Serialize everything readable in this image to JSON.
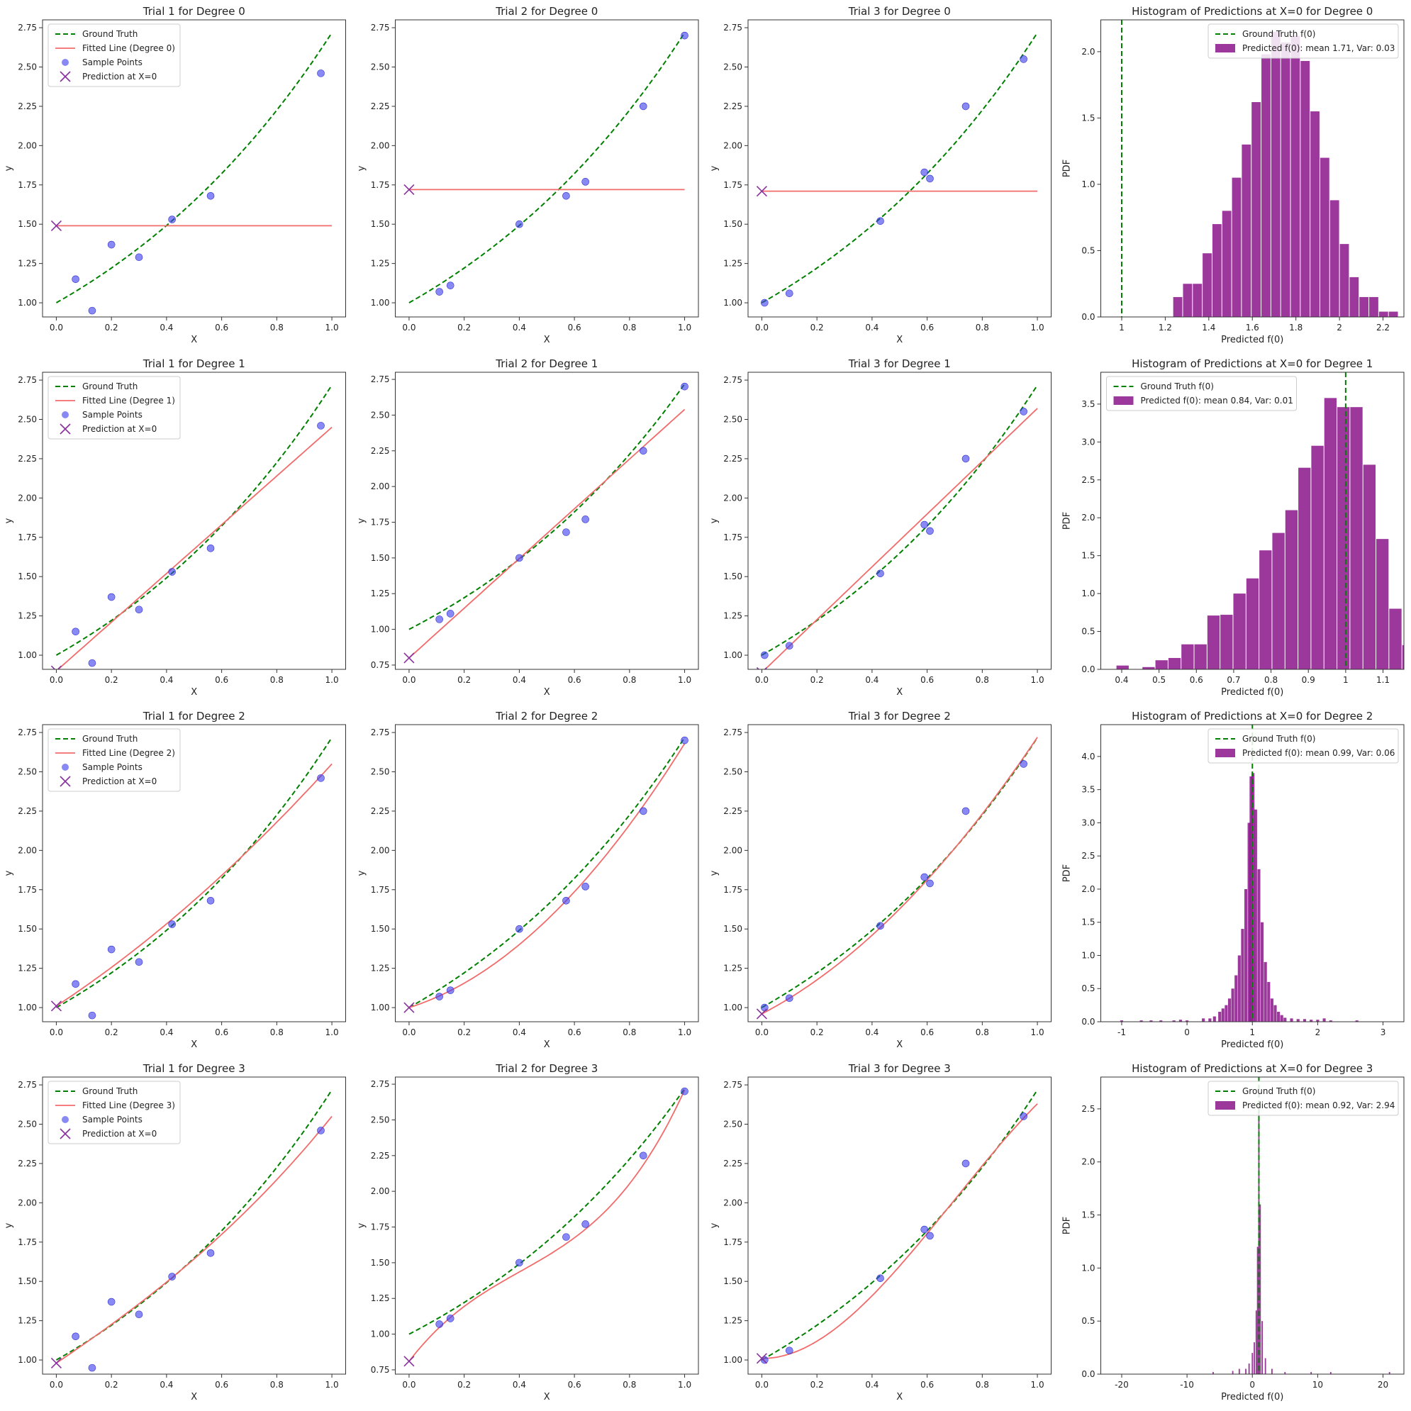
{
  "chart_data": [
    {
      "type": "line",
      "title": "Trial 1 for Degree 0",
      "xlabel": "X",
      "ylabel": "y",
      "xlim": [
        0,
        1
      ],
      "ylim": [
        1.0,
        2.75
      ],
      "legend": [
        "Ground Truth",
        "Fitted Line (Degree 0)",
        "Sample Points",
        "Prediction at X=0"
      ],
      "degree": 0,
      "fit_value": 1.49,
      "prediction": 1.49,
      "samples": [
        [
          0.07,
          1.15
        ],
        [
          0.13,
          0.95
        ],
        [
          0.2,
          1.37
        ],
        [
          0.3,
          1.29
        ],
        [
          0.42,
          1.53
        ],
        [
          0.56,
          1.68
        ],
        [
          0.96,
          2.46
        ]
      ]
    },
    {
      "type": "line",
      "title": "Trial 2 for Degree 0",
      "xlabel": "X",
      "ylabel": "y",
      "xlim": [
        0,
        1
      ],
      "ylim": [
        1.0,
        2.75
      ],
      "legend": [],
      "degree": 0,
      "fit_value": 1.72,
      "prediction": 1.72,
      "samples": [
        [
          0.11,
          1.07
        ],
        [
          0.15,
          1.11
        ],
        [
          0.4,
          1.5
        ],
        [
          0.57,
          1.68
        ],
        [
          0.64,
          1.77
        ],
        [
          0.85,
          2.25
        ],
        [
          1.0,
          2.7
        ]
      ]
    },
    {
      "type": "line",
      "title": "Trial 3 for Degree 0",
      "xlabel": "X",
      "ylabel": "y",
      "xlim": [
        0,
        1
      ],
      "ylim": [
        1.0,
        2.75
      ],
      "legend": [],
      "degree": 0,
      "fit_value": 1.71,
      "prediction": 1.71,
      "samples": [
        [
          0.01,
          1.0
        ],
        [
          0.1,
          1.06
        ],
        [
          0.43,
          1.52
        ],
        [
          0.59,
          1.83
        ],
        [
          0.61,
          1.79
        ],
        [
          0.74,
          2.25
        ],
        [
          0.95,
          2.55
        ]
      ]
    },
    {
      "type": "bar",
      "title": "Histogram of Predictions at X=0 for Degree 0",
      "xlabel": "Predicted f(0)",
      "ylabel": "PDF",
      "xlim": [
        1.0,
        2.2
      ],
      "ylim": [
        0,
        2.0
      ],
      "legend": [
        "Ground Truth f(0)",
        "Predicted f(0): mean 1.71, Var: 0.03"
      ],
      "gt": 1.0,
      "bin_start": 1.235,
      "bin_width": 0.045,
      "values": [
        0.15,
        0.25,
        0.25,
        0.48,
        0.7,
        0.8,
        1.05,
        1.3,
        1.62,
        1.98,
        2.15,
        2.07,
        2.12,
        1.93,
        1.55,
        1.2,
        0.88,
        0.55,
        0.3,
        0.15,
        0.15,
        0.04,
        0.04
      ]
    },
    {
      "type": "line",
      "title": "Trial 1 for Degree 1",
      "xlabel": "X",
      "ylabel": "y",
      "xlim": [
        0,
        1
      ],
      "ylim": [
        1.0,
        2.75
      ],
      "legend": [
        "Ground Truth",
        "Fitted Line (Degree 1)",
        "Sample Points",
        "Prediction at X=0"
      ],
      "degree": 1,
      "fit_start": 0.9,
      "fit_end": 2.45,
      "prediction": 0.9,
      "samples": [
        [
          0.07,
          1.15
        ],
        [
          0.13,
          0.95
        ],
        [
          0.2,
          1.37
        ],
        [
          0.3,
          1.29
        ],
        [
          0.42,
          1.53
        ],
        [
          0.56,
          1.68
        ],
        [
          0.96,
          2.46
        ]
      ]
    },
    {
      "type": "line",
      "title": "Trial 2 for Degree 1",
      "xlabel": "X",
      "ylabel": "y",
      "xlim": [
        0,
        1
      ],
      "ylim": [
        0.75,
        2.75
      ],
      "legend": [],
      "degree": 1,
      "fit_start": 0.8,
      "fit_end": 2.54,
      "prediction": 0.8,
      "samples": [
        [
          0.11,
          1.07
        ],
        [
          0.15,
          1.11
        ],
        [
          0.4,
          1.5
        ],
        [
          0.57,
          1.68
        ],
        [
          0.64,
          1.77
        ],
        [
          0.85,
          2.25
        ],
        [
          1.0,
          2.7
        ]
      ]
    },
    {
      "type": "line",
      "title": "Trial 3 for Degree 1",
      "xlabel": "X",
      "ylabel": "y",
      "xlim": [
        0,
        1
      ],
      "ylim": [
        1.0,
        2.75
      ],
      "legend": [],
      "degree": 1,
      "fit_start": 0.89,
      "fit_end": 2.57,
      "prediction": 0.89,
      "samples": [
        [
          0.01,
          1.0
        ],
        [
          0.1,
          1.06
        ],
        [
          0.43,
          1.52
        ],
        [
          0.59,
          1.83
        ],
        [
          0.61,
          1.79
        ],
        [
          0.74,
          2.25
        ],
        [
          0.95,
          2.55
        ]
      ]
    },
    {
      "type": "bar",
      "title": "Histogram of Predictions at X=0 for Degree 1",
      "xlabel": "Predicted f(0)",
      "ylabel": "PDF",
      "xlim": [
        0.4,
        1.1
      ],
      "ylim": [
        0,
        3.5
      ],
      "legend": [
        "Ground Truth f(0)",
        "Predicted f(0): mean 0.84, Var: 0.01"
      ],
      "gt": 1.0,
      "bin_start": 0.385,
      "bin_width": 0.0348,
      "values": [
        0.05,
        0.0,
        0.03,
        0.12,
        0.15,
        0.33,
        0.33,
        0.71,
        0.72,
        1.0,
        1.2,
        1.57,
        1.8,
        2.1,
        2.66,
        2.95,
        3.58,
        3.46,
        3.46,
        2.7,
        1.72,
        0.8,
        0.32,
        0.18,
        0.05
      ]
    },
    {
      "type": "line",
      "title": "Trial 1 for Degree 2",
      "xlabel": "X",
      "ylabel": "y",
      "xlim": [
        0,
        1
      ],
      "ylim": [
        1.0,
        2.75
      ],
      "legend": [
        "Ground Truth",
        "Fitted Line (Degree 2)",
        "Sample Points",
        "Prediction at X=0"
      ],
      "degree": 2,
      "fit_coef": [
        1.01,
        1.15,
        0.39
      ],
      "prediction": 1.01,
      "samples": [
        [
          0.07,
          1.15
        ],
        [
          0.13,
          0.95
        ],
        [
          0.2,
          1.37
        ],
        [
          0.3,
          1.29
        ],
        [
          0.42,
          1.53
        ],
        [
          0.56,
          1.68
        ],
        [
          0.96,
          2.46
        ]
      ]
    },
    {
      "type": "line",
      "title": "Trial 2 for Degree 2",
      "xlabel": "X",
      "ylabel": "y",
      "xlim": [
        0,
        1
      ],
      "ylim": [
        1.0,
        2.75
      ],
      "legend": [],
      "degree": 2,
      "fit_coef": [
        1.0,
        0.55,
        1.13
      ],
      "prediction": 1.0,
      "samples": [
        [
          0.11,
          1.07
        ],
        [
          0.15,
          1.11
        ],
        [
          0.4,
          1.5
        ],
        [
          0.57,
          1.68
        ],
        [
          0.64,
          1.77
        ],
        [
          0.85,
          2.25
        ],
        [
          1.0,
          2.7
        ]
      ]
    },
    {
      "type": "line",
      "title": "Trial 3 for Degree 2",
      "xlabel": "X",
      "ylabel": "y",
      "xlim": [
        0,
        1
      ],
      "ylim": [
        1.0,
        2.75
      ],
      "legend": [],
      "degree": 2,
      "fit_coef": [
        0.96,
        0.91,
        0.85
      ],
      "prediction": 0.96,
      "samples": [
        [
          0.01,
          1.0
        ],
        [
          0.1,
          1.06
        ],
        [
          0.43,
          1.52
        ],
        [
          0.59,
          1.83
        ],
        [
          0.61,
          1.79
        ],
        [
          0.74,
          2.25
        ],
        [
          0.95,
          2.55
        ]
      ]
    },
    {
      "type": "bar",
      "title": "Histogram of Predictions at X=0 for Degree 2",
      "xlabel": "Predicted f(0)",
      "ylabel": "PDF",
      "xlim": [
        -1,
        3
      ],
      "ylim": [
        0,
        4.0
      ],
      "legend": [
        "Ground Truth f(0)",
        "Predicted f(0): mean 0.99, Var: 0.06"
      ],
      "gt": 1.0,
      "peaks": [
        [
          -1.0,
          0.02
        ],
        [
          -0.7,
          0.02
        ],
        [
          -0.55,
          0.02
        ],
        [
          -0.4,
          0.02
        ],
        [
          -0.2,
          0.02
        ],
        [
          -0.1,
          0.03
        ],
        [
          0.0,
          0.02
        ],
        [
          0.25,
          0.05
        ],
        [
          0.35,
          0.05
        ],
        [
          0.42,
          0.08
        ],
        [
          0.5,
          0.15
        ],
        [
          0.55,
          0.2
        ],
        [
          0.6,
          0.25
        ],
        [
          0.65,
          0.35
        ],
        [
          0.7,
          0.5
        ],
        [
          0.75,
          0.7
        ],
        [
          0.8,
          1.0
        ],
        [
          0.85,
          1.4
        ],
        [
          0.9,
          2.0
        ],
        [
          0.95,
          3.0
        ],
        [
          0.98,
          3.7
        ],
        [
          1.01,
          3.75
        ],
        [
          1.05,
          3.2
        ],
        [
          1.1,
          2.3
        ],
        [
          1.15,
          1.5
        ],
        [
          1.2,
          0.9
        ],
        [
          1.25,
          0.6
        ],
        [
          1.3,
          0.35
        ],
        [
          1.35,
          0.25
        ],
        [
          1.4,
          0.15
        ],
        [
          1.45,
          0.1
        ],
        [
          1.5,
          0.06
        ],
        [
          1.6,
          0.05
        ],
        [
          1.7,
          0.04
        ],
        [
          1.8,
          0.04
        ],
        [
          1.9,
          0.03
        ],
        [
          2.0,
          0.03
        ],
        [
          2.1,
          0.05
        ],
        [
          2.2,
          0.02
        ],
        [
          2.6,
          0.02
        ],
        [
          3.7,
          0.02
        ]
      ]
    },
    {
      "type": "line",
      "title": "Trial 1 for Degree 3",
      "xlabel": "X",
      "ylabel": "y",
      "xlim": [
        0,
        1
      ],
      "ylim": [
        1.0,
        2.75
      ],
      "legend": [
        "Ground Truth",
        "Fitted Line (Degree 3)",
        "Sample Points",
        "Prediction at X=0"
      ],
      "degree": 3,
      "fit_coef": [
        0.98,
        1.19,
        0.16,
        0.22
      ],
      "prediction": 0.98,
      "samples": [
        [
          0.07,
          1.15
        ],
        [
          0.13,
          0.95
        ],
        [
          0.2,
          1.37
        ],
        [
          0.3,
          1.29
        ],
        [
          0.42,
          1.53
        ],
        [
          0.56,
          1.68
        ],
        [
          0.96,
          2.46
        ]
      ]
    },
    {
      "type": "line",
      "title": "Trial 2 for Degree 3",
      "xlabel": "X",
      "ylabel": "y",
      "xlim": [
        0,
        1
      ],
      "ylim": [
        0.75,
        2.75
      ],
      "legend": [],
      "degree": 3,
      "fit_coef": [
        0.81,
        2.51,
        -3.54,
        2.93
      ],
      "prediction": 0.81,
      "samples": [
        [
          0.11,
          1.07
        ],
        [
          0.15,
          1.11
        ],
        [
          0.4,
          1.5
        ],
        [
          0.57,
          1.68
        ],
        [
          0.64,
          1.77
        ],
        [
          0.85,
          2.25
        ],
        [
          1.0,
          2.7
        ]
      ]
    },
    {
      "type": "line",
      "title": "Trial 3 for Degree 3",
      "xlabel": "X",
      "ylabel": "y",
      "xlim": [
        0,
        1
      ],
      "ylim": [
        1.0,
        2.75
      ],
      "legend": [],
      "degree": 3,
      "fit_coef": [
        1.01,
        -0.02,
        3.14,
        -1.5
      ],
      "prediction": 1.01,
      "samples": [
        [
          0.01,
          1.0
        ],
        [
          0.1,
          1.06
        ],
        [
          0.43,
          1.52
        ],
        [
          0.59,
          1.83
        ],
        [
          0.61,
          1.79
        ],
        [
          0.74,
          2.25
        ],
        [
          0.95,
          2.55
        ]
      ]
    },
    {
      "type": "bar",
      "title": "Histogram of Predictions at X=0 for Degree 3",
      "xlabel": "Predicted f(0)",
      "ylabel": "PDF",
      "xlim": [
        -20,
        20
      ],
      "ylim": [
        0,
        2.5
      ],
      "legend": [
        "Ground Truth f(0)",
        "Predicted f(0): mean 0.92, Var: 2.94"
      ],
      "gt": 1.0,
      "peaks": [
        [
          -6,
          0.02
        ],
        [
          -3,
          0.03
        ],
        [
          -2,
          0.05
        ],
        [
          -1,
          0.05
        ],
        [
          -0.5,
          0.1
        ],
        [
          0,
          0.2
        ],
        [
          0.3,
          0.3
        ],
        [
          0.6,
          0.6
        ],
        [
          0.8,
          1.2
        ],
        [
          1.0,
          2.55
        ],
        [
          1.2,
          1.6
        ],
        [
          1.5,
          0.5
        ],
        [
          2,
          0.15
        ],
        [
          3,
          0.05
        ],
        [
          5,
          0.02
        ],
        [
          9,
          0.02
        ],
        [
          12,
          0.02
        ],
        [
          21,
          0.02
        ]
      ]
    }
  ]
}
